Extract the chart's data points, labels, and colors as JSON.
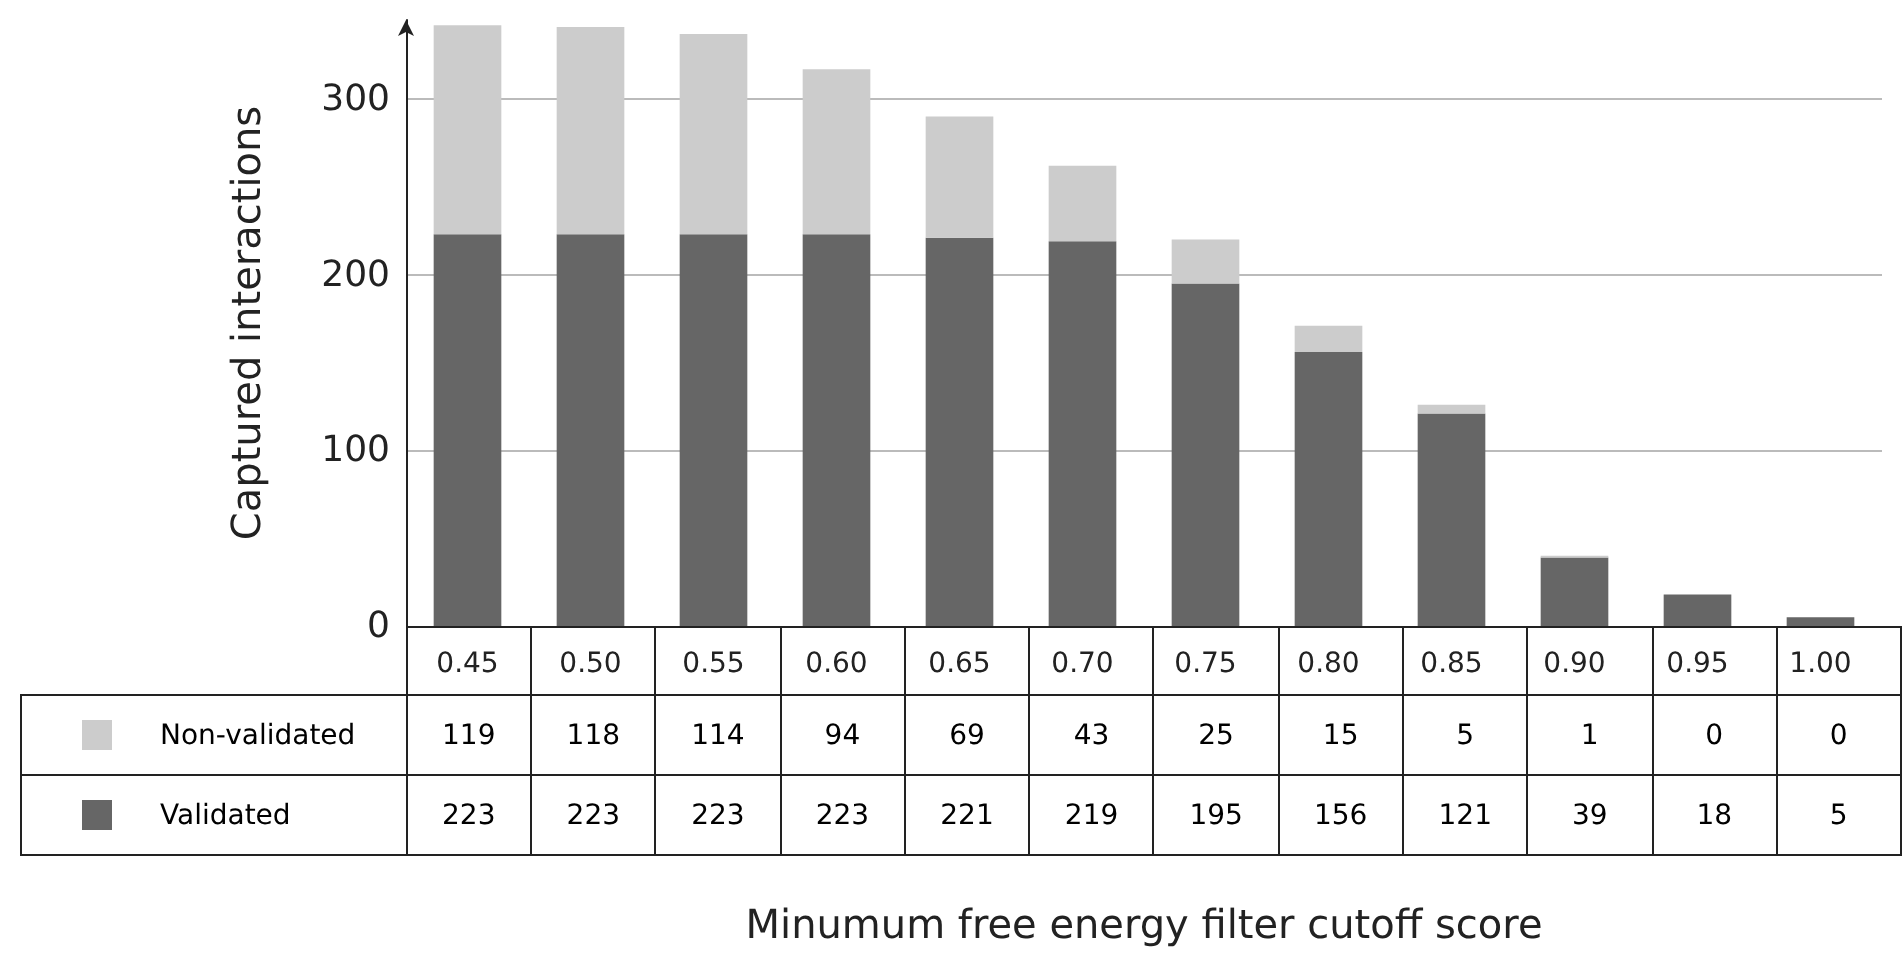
{
  "chart_data": {
    "type": "bar",
    "stacked": true,
    "annotations": [
      "Minumum free energy filter cutoff score"
    ],
    "ylabel": "Captured interactions",
    "categories": [
      "0.45",
      "0.50",
      "0.55",
      "0.60",
      "0.65",
      "0.70",
      "0.75",
      "0.80",
      "0.85",
      "0.90",
      "0.95",
      "1.00"
    ],
    "series": [
      {
        "name": "Validated",
        "color": "#666666",
        "values": [
          223,
          223,
          223,
          223,
          221,
          219,
          195,
          156,
          121,
          39,
          18,
          5
        ]
      },
      {
        "name": "Non-validated",
        "color": "#cccccc",
        "values": [
          119,
          118,
          114,
          94,
          69,
          43,
          25,
          15,
          5,
          1,
          0,
          0
        ]
      }
    ],
    "ylim": [
      0,
      345
    ],
    "yticks": [
      0,
      100,
      200,
      300
    ],
    "grid": "y",
    "legend": "bottom left",
    "data_labels": true
  }
}
